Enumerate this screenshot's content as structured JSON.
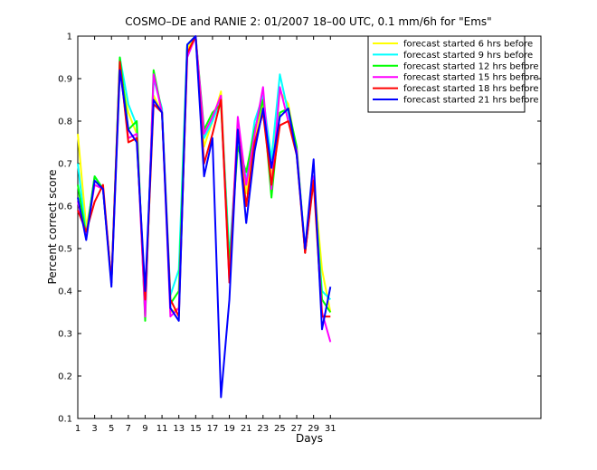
{
  "chart_data": {
    "type": "line",
    "title": "COSMO–DE and RANIE 2: 01/2007 18–00 UTC, 0.1 mm/6h for \"Ems\"",
    "xlabel": "Days",
    "ylabel": "Percent correct score",
    "xlim": [
      1,
      56
    ],
    "ylim": [
      0.1,
      1.0
    ],
    "x_ticks": [
      1,
      3,
      5,
      7,
      9,
      11,
      13,
      15,
      17,
      19,
      21,
      23,
      25,
      27,
      29,
      31
    ],
    "y_ticks": [
      0.1,
      0.2,
      0.3,
      0.4,
      0.5,
      0.6,
      0.7,
      0.8,
      0.9,
      1.0
    ],
    "y_tick_labels": [
      "0.1",
      "0.2",
      "0.3",
      "0.4",
      "0.5",
      "0.6",
      "0.7",
      "0.8",
      "0.9",
      "1"
    ],
    "grid": false,
    "legend_position": "top-right",
    "x": [
      1,
      2,
      3,
      4,
      5,
      6,
      7,
      8,
      9,
      10,
      11,
      12,
      13,
      14,
      15,
      16,
      17,
      18,
      19,
      20,
      21,
      22,
      23,
      24,
      25,
      26,
      27,
      28,
      29,
      30,
      31
    ],
    "series": [
      {
        "name": "forecast started 6 hrs before",
        "color": "#ffff00",
        "values": [
          0.77,
          0.55,
          0.65,
          0.64,
          0.42,
          0.92,
          0.82,
          0.77,
          0.36,
          0.86,
          0.82,
          0.35,
          0.36,
          0.97,
          1.0,
          0.74,
          0.8,
          0.87,
          0.47,
          0.77,
          0.63,
          0.76,
          0.84,
          0.67,
          0.87,
          0.84,
          0.73,
          0.49,
          0.67,
          0.45,
          0.35
        ]
      },
      {
        "name": "forecast started 9 hrs before",
        "color": "#00ffff",
        "values": [
          0.7,
          0.53,
          0.67,
          0.64,
          0.42,
          0.95,
          0.84,
          0.79,
          0.35,
          0.9,
          0.83,
          0.39,
          0.45,
          0.98,
          1.0,
          0.76,
          0.8,
          0.85,
          0.48,
          0.76,
          0.66,
          0.8,
          0.86,
          0.71,
          0.91,
          0.82,
          0.73,
          0.5,
          0.66,
          0.4,
          0.38
        ]
      },
      {
        "name": "forecast started 12 hrs before",
        "color": "#00ff00",
        "values": [
          0.65,
          0.53,
          0.67,
          0.64,
          0.42,
          0.95,
          0.78,
          0.8,
          0.33,
          0.92,
          0.82,
          0.37,
          0.4,
          0.98,
          1.0,
          0.78,
          0.82,
          0.84,
          0.46,
          0.74,
          0.68,
          0.78,
          0.85,
          0.62,
          0.82,
          0.83,
          0.74,
          0.49,
          0.67,
          0.38,
          0.35
        ]
      },
      {
        "name": "forecast started 15 hrs before",
        "color": "#ff00ff",
        "values": [
          0.61,
          0.53,
          0.65,
          0.64,
          0.42,
          0.93,
          0.76,
          0.77,
          0.34,
          0.91,
          0.82,
          0.34,
          0.36,
          0.95,
          1.0,
          0.77,
          0.81,
          0.86,
          0.42,
          0.81,
          0.65,
          0.77,
          0.88,
          0.64,
          0.88,
          0.8,
          0.73,
          0.49,
          0.67,
          0.35,
          0.28
        ]
      },
      {
        "name": "forecast started 18 hrs before",
        "color": "#ff0000",
        "values": [
          0.59,
          0.54,
          0.61,
          0.65,
          0.42,
          0.94,
          0.75,
          0.76,
          0.38,
          0.84,
          0.82,
          0.38,
          0.34,
          0.96,
          1.0,
          0.7,
          0.77,
          0.85,
          0.42,
          0.78,
          0.6,
          0.75,
          0.82,
          0.65,
          0.79,
          0.8,
          0.72,
          0.49,
          0.66,
          0.34,
          0.34
        ]
      },
      {
        "name": "forecast started 21 hrs before",
        "color": "#0000ff",
        "values": [
          0.62,
          0.52,
          0.66,
          0.64,
          0.41,
          0.92,
          0.78,
          0.75,
          0.4,
          0.85,
          0.82,
          0.36,
          0.33,
          0.98,
          1.0,
          0.67,
          0.76,
          0.15,
          0.38,
          0.78,
          0.56,
          0.73,
          0.83,
          0.69,
          0.81,
          0.83,
          0.72,
          0.5,
          0.71,
          0.31,
          0.41
        ]
      }
    ]
  }
}
